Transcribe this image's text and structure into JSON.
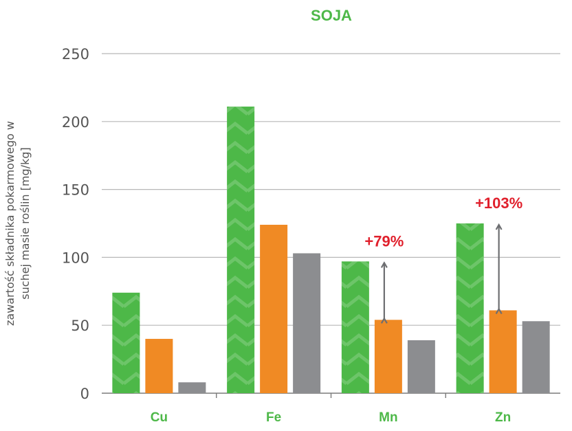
{
  "chart_data": {
    "type": "bar",
    "title": "SOJA",
    "ylabel_line1": "zawartość składnika pokarmowego w",
    "ylabel_line2": "suchej masie roślin [mg/kg]",
    "categories": [
      "Cu",
      "Fe",
      "Mn",
      "Zn"
    ],
    "series": [
      {
        "values": [
          74,
          211,
          97,
          125
        ],
        "color": "#4db848"
      },
      {
        "values": [
          40,
          124,
          54,
          61
        ],
        "color": "#f08a24"
      },
      {
        "values": [
          8,
          103,
          39,
          53
        ],
        "color": "#8c8d90"
      }
    ],
    "ylim": [
      0,
      250
    ],
    "yticks": [
      "0",
      "50",
      "100",
      "150",
      "200",
      "250"
    ],
    "grid": true,
    "annotations": [
      {
        "category": "Mn",
        "text": "+79%",
        "from": 54,
        "to": 97
      },
      {
        "category": "Zn",
        "text": "+103%",
        "from": 61,
        "to": 125
      }
    ],
    "colors": {
      "title": "#4db848",
      "category_label": "#4db848",
      "annotation_text": "#e0202c",
      "arrow": "#6d6e71",
      "axis_text": "#555555",
      "grid": "#b7b7b7"
    }
  }
}
